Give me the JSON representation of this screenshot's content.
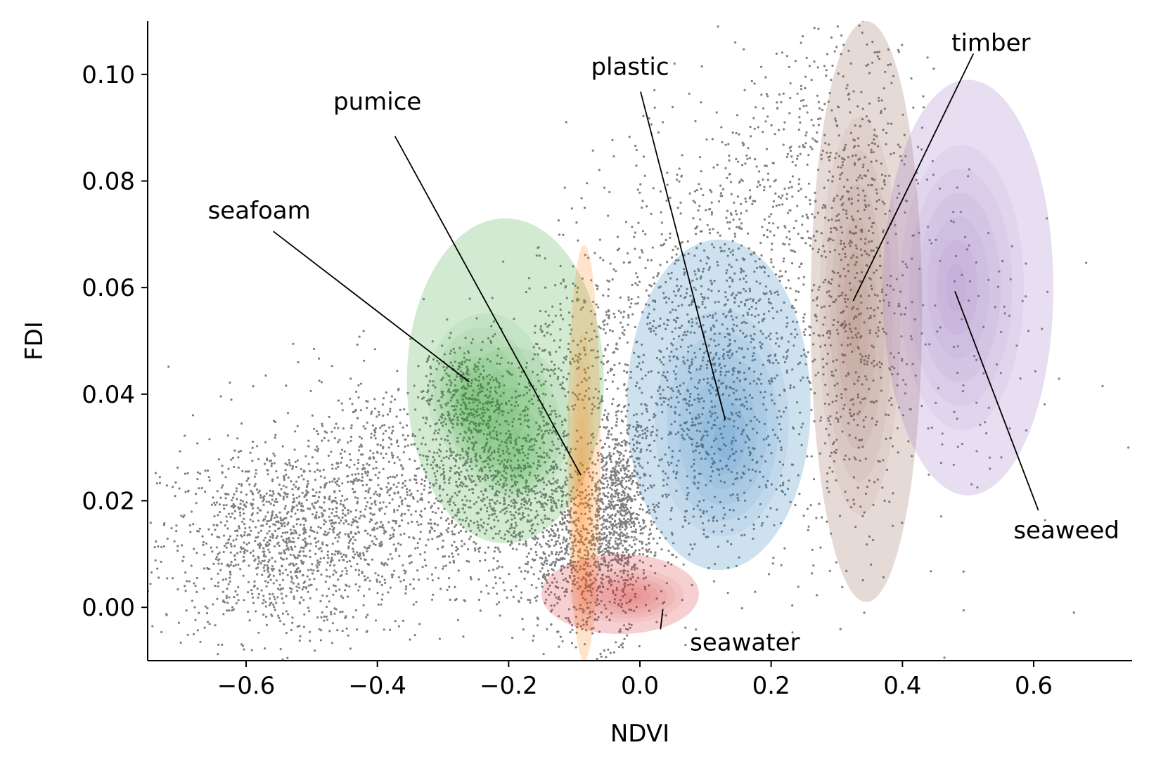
{
  "chart_data": {
    "type": "scatter",
    "title": "",
    "xlabel": "NDVI",
    "ylabel": "FDI",
    "xlim": [
      -0.75,
      0.75
    ],
    "ylim": [
      -0.01,
      0.11
    ],
    "grid": false,
    "x_ticks": [
      -0.6,
      -0.4,
      -0.2,
      0.0,
      0.2,
      0.4,
      0.6
    ],
    "x_tick_labels": [
      "−0.6",
      "−0.4",
      "−0.2",
      "0.0",
      "0.2",
      "0.4",
      "0.6"
    ],
    "y_ticks": [
      0.0,
      0.02,
      0.04,
      0.06,
      0.08,
      0.1
    ],
    "y_tick_labels": [
      "0.00",
      "0.02",
      "0.04",
      "0.06",
      "0.08",
      "0.10"
    ],
    "background_points": {
      "color": "#000000",
      "clusters": [
        {
          "x_center": -0.55,
          "y_center": 0.012,
          "x_sd": 0.09,
          "y_sd": 0.009,
          "count": 1100
        },
        {
          "x_center": -0.38,
          "y_center": 0.022,
          "x_sd": 0.1,
          "y_sd": 0.011,
          "count": 900
        },
        {
          "x_center": -0.27,
          "y_center": 0.04,
          "x_sd": 0.03,
          "y_sd": 0.005,
          "count": 300
        },
        {
          "x_center": -0.2,
          "y_center": 0.025,
          "x_sd": 0.06,
          "y_sd": 0.01,
          "count": 900
        },
        {
          "x_center": -0.08,
          "y_center": 0.01,
          "x_sd": 0.05,
          "y_sd": 0.008,
          "count": 900
        },
        {
          "x_center": -0.03,
          "y_center": 0.02,
          "x_sd": 0.02,
          "y_sd": 0.008,
          "count": 500
        },
        {
          "x_center": -0.1,
          "y_center": 0.045,
          "x_sd": 0.05,
          "y_sd": 0.012,
          "count": 300
        },
        {
          "x_center": 0.1,
          "y_center": 0.04,
          "x_sd": 0.09,
          "y_sd": 0.016,
          "count": 1200
        },
        {
          "x_center": 0.17,
          "y_center": 0.07,
          "x_sd": 0.1,
          "y_sd": 0.014,
          "count": 500
        },
        {
          "x_center": 0.3,
          "y_center": 0.085,
          "x_sd": 0.07,
          "y_sd": 0.015,
          "count": 350
        },
        {
          "x_center": 0.33,
          "y_center": 0.05,
          "x_sd": 0.04,
          "y_sd": 0.02,
          "count": 400
        },
        {
          "x_center": 0.48,
          "y_center": 0.05,
          "x_sd": 0.08,
          "y_sd": 0.02,
          "count": 120
        }
      ]
    },
    "series": [
      {
        "name": "seafoam",
        "color": "#2ca02c",
        "density": {
          "type": "kde",
          "peaks": [
            {
              "x": -0.265,
              "y": 0.039
            },
            {
              "x": -0.185,
              "y": 0.026
            }
          ],
          "extent_x": [
            -0.355,
            -0.055
          ],
          "extent_y": [
            0.012,
            0.073
          ]
        }
      },
      {
        "name": "pumice",
        "color": "#ff7f0e",
        "density": {
          "type": "kde",
          "peaks": [
            {
              "x": -0.09,
              "y": 0.02
            }
          ],
          "extent_x": [
            -0.11,
            -0.06
          ],
          "extent_y": [
            -0.01,
            0.068
          ]
        }
      },
      {
        "name": "plastic",
        "color": "#1f77b4",
        "density": {
          "type": "kde",
          "peaks": [
            {
              "x": 0.13,
              "y": 0.031
            }
          ],
          "extent_x": [
            -0.02,
            0.26
          ],
          "extent_y": [
            0.007,
            0.069
          ]
        }
      },
      {
        "name": "seawater",
        "color": "#d62728",
        "density": {
          "type": "kde",
          "peaks": [
            {
              "x": -0.01,
              "y": 0.002
            }
          ],
          "extent_x": [
            -0.15,
            0.09
          ],
          "extent_y": [
            -0.005,
            0.01
          ]
        }
      },
      {
        "name": "timber",
        "color": "#8c564b",
        "density": {
          "type": "kde",
          "peaks": [
            {
              "x": 0.325,
              "y": 0.054
            }
          ],
          "extent_x": [
            0.26,
            0.43
          ],
          "extent_y": [
            0.001,
            0.11
          ]
        }
      },
      {
        "name": "seaweed",
        "color": "#9467bd",
        "density": {
          "type": "kde",
          "peaks": [
            {
              "x": 0.48,
              "y": 0.06
            }
          ],
          "extent_x": [
            0.37,
            0.63
          ],
          "extent_y": [
            0.021,
            0.099
          ]
        }
      }
    ],
    "annotations": [
      {
        "text": "seafoam",
        "text_x": -0.58,
        "text_y": 0.0745,
        "point_x": -0.26,
        "point_y": 0.0423
      },
      {
        "text": "pumice",
        "text_x": -0.4,
        "text_y": 0.095,
        "point_x": -0.09,
        "point_y": 0.0248
      },
      {
        "text": "plastic",
        "text_x": -0.015,
        "text_y": 0.1015,
        "point_x": 0.13,
        "point_y": 0.0352
      },
      {
        "text": "seawater",
        "text_x": 0.16,
        "text_y": -0.0065,
        "point_x": 0.035,
        "point_y": -0.0003
      },
      {
        "text": "timber",
        "text_x": 0.535,
        "text_y": 0.106,
        "point_x": 0.325,
        "point_y": 0.0575
      },
      {
        "text": "seaweed",
        "text_x": 0.65,
        "text_y": 0.0145,
        "point_x": 0.48,
        "point_y": 0.0593
      }
    ]
  }
}
